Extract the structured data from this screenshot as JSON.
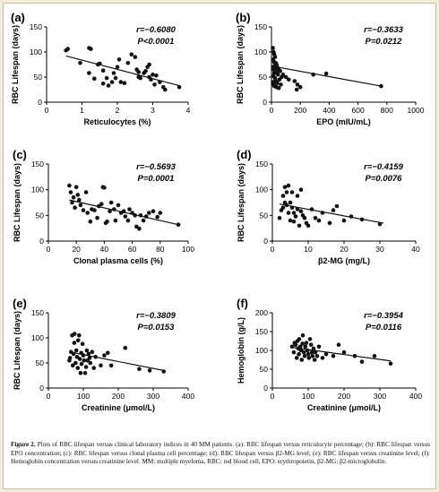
{
  "caption": {
    "label": "Figure 2.",
    "text": "Plots of RBC lifespan versus clinical laboratory indices in 40 MM patients. (a): RBC lifespan versus reticulocyte percentage; (b): RBC lifespan versus EPO concentration; (c): RBC lifespan versus clonal plasma cell percentage; (d): RBC lifespan versus β2-MG level; (e): RBC lifespan versus creatinine level; (f): Hemoglobin concentration versus creatinine level. MM: multiple myeloma, RBC: red blood cell, EPO: erythropoietin, β2-MG: β2-microglobulin."
  },
  "chart_data": [
    {
      "panel": "(a)",
      "type": "scatter",
      "xlabel": "Reticulocytes (%)",
      "ylabel": "RBC Lifespan (days)",
      "xlim": [
        0,
        4
      ],
      "ylim": [
        0,
        150
      ],
      "xticks": [
        0,
        1,
        2,
        3,
        4
      ],
      "yticks": [
        0,
        50,
        100,
        150
      ],
      "stat_r": "r=−0.6080",
      "stat_p": "P<0.0001",
      "regression": [
        [
          0.55,
          92
        ],
        [
          3.75,
          33
        ]
      ],
      "points": [
        [
          0.55,
          103
        ],
        [
          0.6,
          106
        ],
        [
          0.95,
          78
        ],
        [
          1.2,
          108
        ],
        [
          1.25,
          106
        ],
        [
          1.2,
          58
        ],
        [
          1.35,
          47
        ],
        [
          1.45,
          75
        ],
        [
          1.5,
          77
        ],
        [
          1.6,
          63
        ],
        [
          1.6,
          37
        ],
        [
          1.7,
          48
        ],
        [
          1.75,
          33
        ],
        [
          1.85,
          40
        ],
        [
          1.9,
          58
        ],
        [
          1.95,
          48
        ],
        [
          2.0,
          70
        ],
        [
          2.05,
          85
        ],
        [
          2.1,
          40
        ],
        [
          2.2,
          38
        ],
        [
          2.3,
          78
        ],
        [
          2.4,
          95
        ],
        [
          2.5,
          90
        ],
        [
          2.55,
          65
        ],
        [
          2.6,
          60
        ],
        [
          2.6,
          50
        ],
        [
          2.65,
          48
        ],
        [
          2.75,
          58
        ],
        [
          2.8,
          62
        ],
        [
          2.85,
          70
        ],
        [
          2.9,
          75
        ],
        [
          2.9,
          50
        ],
        [
          2.95,
          45
        ],
        [
          3.0,
          55
        ],
        [
          3.05,
          35
        ],
        [
          3.1,
          53
        ],
        [
          3.2,
          40
        ],
        [
          3.3,
          30
        ],
        [
          3.35,
          25
        ],
        [
          3.75,
          30
        ]
      ]
    },
    {
      "panel": "(b)",
      "type": "scatter",
      "xlabel": "EPO (mIU/mL)",
      "ylabel": "RBC Lifespan (days)",
      "xlim": [
        0,
        1000
      ],
      "ylim": [
        0,
        150
      ],
      "xticks": [
        0,
        200,
        400,
        600,
        800,
        1000
      ],
      "yticks": [
        0,
        50,
        100,
        150
      ],
      "stat_r": "r=−0.3633",
      "stat_p": "P=0.0212",
      "regression": [
        [
          0,
          72
        ],
        [
          760,
          32
        ]
      ],
      "points": [
        [
          10,
          108
        ],
        [
          15,
          100
        ],
        [
          20,
          95
        ],
        [
          25,
          90
        ],
        [
          12,
          85
        ],
        [
          18,
          80
        ],
        [
          30,
          78
        ],
        [
          35,
          75
        ],
        [
          22,
          72
        ],
        [
          10,
          70
        ],
        [
          40,
          70
        ],
        [
          28,
          68
        ],
        [
          15,
          65
        ],
        [
          50,
          65
        ],
        [
          60,
          62
        ],
        [
          35,
          60
        ],
        [
          20,
          58
        ],
        [
          45,
          55
        ],
        [
          12,
          52
        ],
        [
          70,
          50
        ],
        [
          25,
          48
        ],
        [
          55,
          45
        ],
        [
          30,
          42
        ],
        [
          10,
          40
        ],
        [
          40,
          38
        ],
        [
          15,
          35
        ],
        [
          65,
          35
        ],
        [
          20,
          32
        ],
        [
          35,
          30
        ],
        [
          50,
          28
        ],
        [
          80,
          55
        ],
        [
          100,
          50
        ],
        [
          120,
          45
        ],
        [
          160,
          42
        ],
        [
          180,
          35
        ],
        [
          200,
          30
        ],
        [
          290,
          55
        ],
        [
          380,
          57
        ],
        [
          175,
          25
        ],
        [
          760,
          32
        ]
      ]
    },
    {
      "panel": "(c)",
      "type": "scatter",
      "xlabel": "Clonal plasma cells (%)",
      "ylabel": "RBC Lifespan (days)",
      "xlim": [
        0,
        100
      ],
      "ylim": [
        0,
        150
      ],
      "xticks": [
        0,
        20,
        40,
        60,
        80,
        100
      ],
      "yticks": [
        0,
        50,
        100,
        150
      ],
      "stat_r": "r=−0.5693",
      "stat_p": "P=0.0001",
      "regression": [
        [
          15,
          80
        ],
        [
          93,
          32
        ]
      ],
      "points": [
        [
          15,
          108
        ],
        [
          16,
          95
        ],
        [
          17,
          75
        ],
        [
          18,
          85
        ],
        [
          19,
          65
        ],
        [
          20,
          105
        ],
        [
          21,
          90
        ],
        [
          22,
          80
        ],
        [
          23,
          70
        ],
        [
          25,
          60
        ],
        [
          27,
          95
        ],
        [
          28,
          55
        ],
        [
          30,
          38
        ],
        [
          31,
          62
        ],
        [
          33,
          60
        ],
        [
          35,
          45
        ],
        [
          36,
          68
        ],
        [
          38,
          72
        ],
        [
          39,
          105
        ],
        [
          40,
          104
        ],
        [
          41,
          35
        ],
        [
          42,
          38
        ],
        [
          44,
          58
        ],
        [
          45,
          75
        ],
        [
          47,
          62
        ],
        [
          48,
          40
        ],
        [
          50,
          70
        ],
        [
          52,
          55
        ],
        [
          54,
          58
        ],
        [
          55,
          48
        ],
        [
          57,
          40
        ],
        [
          58,
          62
        ],
        [
          60,
          55
        ],
        [
          62,
          50
        ],
        [
          63,
          28
        ],
        [
          65,
          24
        ],
        [
          66,
          50
        ],
        [
          68,
          40
        ],
        [
          70,
          48
        ],
        [
          72,
          55
        ],
        [
          75,
          58
        ],
        [
          78,
          47
        ],
        [
          80,
          55
        ],
        [
          93,
          32
        ]
      ]
    },
    {
      "panel": "(d)",
      "type": "scatter",
      "xlabel": "β2-MG (mg/L)",
      "ylabel": "RBC Lifespan (days)",
      "xlim": [
        0,
        40
      ],
      "ylim": [
        0,
        150
      ],
      "xticks": [
        0,
        10,
        20,
        30,
        40
      ],
      "yticks": [
        0,
        50,
        100,
        150
      ],
      "stat_r": "r=−0.4159",
      "stat_p": "P=0.0076",
      "regression": [
        [
          2,
          72
        ],
        [
          31,
          35
        ]
      ],
      "points": [
        [
          2,
          45
        ],
        [
          2.5,
          60
        ],
        [
          3,
          65
        ],
        [
          3,
          88
        ],
        [
          3.5,
          75
        ],
        [
          3.5,
          105
        ],
        [
          4,
          95
        ],
        [
          4,
          70
        ],
        [
          4.5,
          55
        ],
        [
          4.5,
          108
        ],
        [
          5,
          40
        ],
        [
          5,
          75
        ],
        [
          5.5,
          65
        ],
        [
          5.5,
          95
        ],
        [
          6,
          55
        ],
        [
          6,
          38
        ],
        [
          6.5,
          48
        ],
        [
          7,
          62
        ],
        [
          7,
          88
        ],
        [
          7.5,
          30
        ],
        [
          8,
          100
        ],
        [
          8,
          58
        ],
        [
          8.5,
          50
        ],
        [
          9,
          45
        ],
        [
          9.5,
          35
        ],
        [
          10,
          30
        ],
        [
          11,
          62
        ],
        [
          12,
          45
        ],
        [
          13,
          40
        ],
        [
          14,
          55
        ],
        [
          16,
          35
        ],
        [
          17,
          60
        ],
        [
          18,
          68
        ],
        [
          20,
          40
        ],
        [
          22,
          48
        ],
        [
          25,
          42
        ],
        [
          30,
          33
        ]
      ]
    },
    {
      "panel": "(e)",
      "type": "scatter",
      "xlabel": "Creatinine (μmol/L)",
      "ylabel": "RBC Lifespan (days)",
      "xlim": [
        0,
        400
      ],
      "ylim": [
        0,
        150
      ],
      "xticks": [
        0,
        100,
        200,
        300,
        400
      ],
      "yticks": [
        0,
        50,
        100,
        150
      ],
      "stat_r": "r=−0.3809",
      "stat_p": "P=0.0153",
      "regression": [
        [
          60,
          72
        ],
        [
          330,
          35
        ]
      ],
      "points": [
        [
          60,
          55
        ],
        [
          62,
          60
        ],
        [
          65,
          72
        ],
        [
          68,
          105
        ],
        [
          70,
          45
        ],
        [
          72,
          68
        ],
        [
          74,
          90
        ],
        [
          75,
          108
        ],
        [
          78,
          50
        ],
        [
          80,
          75
        ],
        [
          82,
          62
        ],
        [
          84,
          40
        ],
        [
          85,
          95
        ],
        [
          88,
          105
        ],
        [
          90,
          58
        ],
        [
          92,
          30
        ],
        [
          94,
          70
        ],
        [
          95,
          48
        ],
        [
          98,
          88
        ],
        [
          100,
          65
        ],
        [
          102,
          55
        ],
        [
          105,
          30
        ],
        [
          108,
          42
        ],
        [
          110,
          75
        ],
        [
          112,
          55
        ],
        [
          115,
          68
        ],
        [
          118,
          60
        ],
        [
          120,
          50
        ],
        [
          125,
          72
        ],
        [
          130,
          40
        ],
        [
          135,
          62
        ],
        [
          150,
          45
        ],
        [
          160,
          65
        ],
        [
          170,
          70
        ],
        [
          180,
          45
        ],
        [
          220,
          80
        ],
        [
          260,
          38
        ],
        [
          290,
          35
        ],
        [
          330,
          33
        ]
      ]
    },
    {
      "panel": "(f)",
      "type": "scatter",
      "xlabel": "Creatinine (μmol/L)",
      "ylabel": "Hemoglobin (g/L)",
      "xlim": [
        0,
        400
      ],
      "ylim": [
        0,
        200
      ],
      "xticks": [
        0,
        100,
        200,
        300,
        400
      ],
      "yticks": [
        0,
        50,
        100,
        150,
        200
      ],
      "stat_r": "r=−0.3954",
      "stat_p": "P=0.0116",
      "regression": [
        [
          55,
          108
        ],
        [
          330,
          72
        ]
      ],
      "points": [
        [
          55,
          110
        ],
        [
          60,
          95
        ],
        [
          62,
          120
        ],
        [
          65,
          115
        ],
        [
          68,
          80
        ],
        [
          70,
          125
        ],
        [
          72,
          105
        ],
        [
          74,
          90
        ],
        [
          75,
          130
        ],
        [
          78,
          110
        ],
        [
          80,
          100
        ],
        [
          82,
          75
        ],
        [
          84,
          118
        ],
        [
          85,
          140
        ],
        [
          88,
          95
        ],
        [
          90,
          85
        ],
        [
          92,
          110
        ],
        [
          95,
          120
        ],
        [
          98,
          100
        ],
        [
          100,
          90
        ],
        [
          102,
          80
        ],
        [
          105,
          130
        ],
        [
          108,
          115
        ],
        [
          110,
          95
        ],
        [
          112,
          85
        ],
        [
          115,
          105
        ],
        [
          118,
          75
        ],
        [
          120,
          95
        ],
        [
          125,
          85
        ],
        [
          130,
          110
        ],
        [
          140,
          80
        ],
        [
          150,
          90
        ],
        [
          170,
          85
        ],
        [
          185,
          115
        ],
        [
          200,
          95
        ],
        [
          230,
          85
        ],
        [
          250,
          70
        ],
        [
          285,
          85
        ],
        [
          330,
          65
        ]
      ]
    }
  ]
}
